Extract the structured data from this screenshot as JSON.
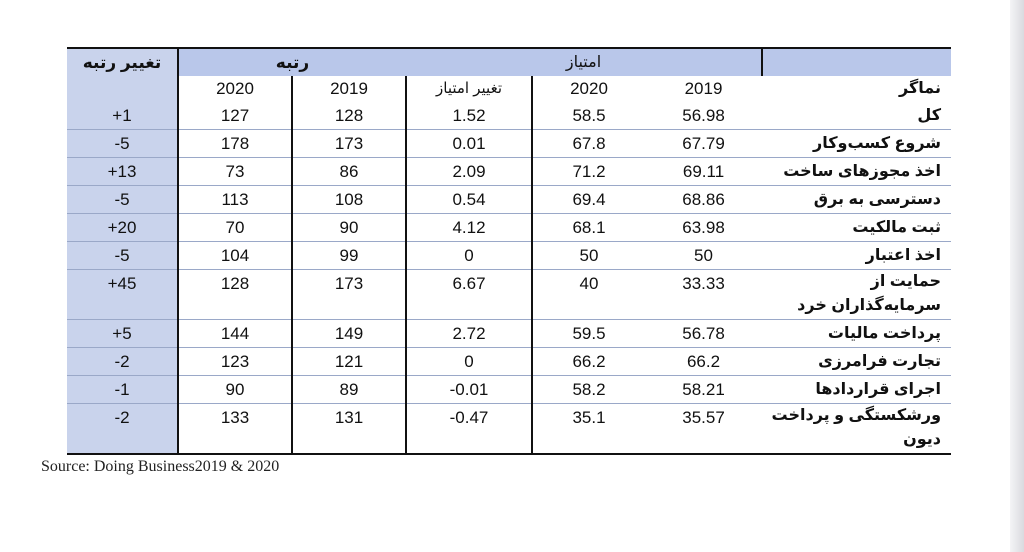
{
  "header": {
    "rank_change": "تغییر رتبه",
    "rank": "رتبه",
    "score": "امتیاز",
    "year_2020": "2020",
    "year_2019": "2019",
    "score_change": "تغییر امتیاز",
    "indicator": "نماگر"
  },
  "rows": [
    {
      "indicator": "کل",
      "rank_change": "+1",
      "rank_2020": "127",
      "rank_2019": "128",
      "score_change": "1.52",
      "score_2020": "58.5",
      "score_2019": "56.98"
    },
    {
      "indicator": "شروع کسب‌وکار",
      "rank_change": "-5",
      "rank_2020": "178",
      "rank_2019": "173",
      "score_change": "0.01",
      "score_2020": "67.8",
      "score_2019": "67.79"
    },
    {
      "indicator": "اخذ مجوزهای ساخت",
      "rank_change": "+13",
      "rank_2020": "73",
      "rank_2019": "86",
      "score_change": "2.09",
      "score_2020": "71.2",
      "score_2019": "69.11"
    },
    {
      "indicator": "دسترسی به برق",
      "rank_change": "-5",
      "rank_2020": "113",
      "rank_2019": "108",
      "score_change": "0.54",
      "score_2020": "69.4",
      "score_2019": "68.86"
    },
    {
      "indicator": "ثبت مالکیت",
      "rank_change": "+20",
      "rank_2020": "70",
      "rank_2019": "90",
      "score_change": "4.12",
      "score_2020": "68.1",
      "score_2019": "63.98"
    },
    {
      "indicator": "اخذ اعتبار",
      "rank_change": "-5",
      "rank_2020": "104",
      "rank_2019": "99",
      "score_change": "0",
      "score_2020": "50",
      "score_2019": "50"
    },
    {
      "indicator": "حمایت از سرمایه‌گذاران خرد",
      "rank_change": "+45",
      "rank_2020": "128",
      "rank_2019": "173",
      "score_change": "6.67",
      "score_2020": "40",
      "score_2019": "33.33"
    },
    {
      "indicator": "پرداخت مالیات",
      "rank_change": "+5",
      "rank_2020": "144",
      "rank_2019": "149",
      "score_change": "2.72",
      "score_2020": "59.5",
      "score_2019": "56.78"
    },
    {
      "indicator": "تجارت فرامرزی",
      "rank_change": "-2",
      "rank_2020": "123",
      "rank_2019": "121",
      "score_change": "0",
      "score_2020": "66.2",
      "score_2019": "66.2"
    },
    {
      "indicator": "اجرای قراردادها",
      "rank_change": "-1",
      "rank_2020": "90",
      "rank_2019": "89",
      "score_change": "-0.01",
      "score_2020": "58.2",
      "score_2019": "58.21"
    },
    {
      "indicator": "ورشکستگی و پرداخت دیون",
      "rank_change": "-2",
      "rank_2020": "133",
      "rank_2019": "131",
      "score_change": "-0.47",
      "score_2020": "35.1",
      "score_2019": "35.57"
    }
  ],
  "source": "Source: Doing Business2019 & 2020"
}
